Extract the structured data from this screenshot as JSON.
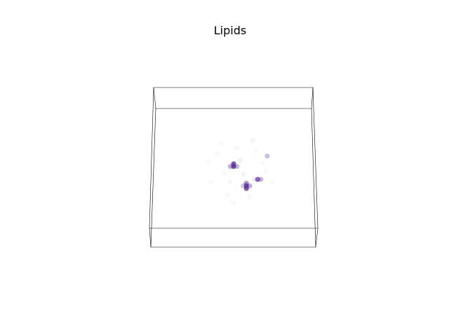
{
  "chart_data": {
    "type": "scatter",
    "projection": "3d",
    "title": "Lipids",
    "xlabel": "",
    "ylabel": "",
    "zlabel": "",
    "axis": "off",
    "grid": false,
    "legend": "none",
    "colormap": "purples",
    "color_high": "#54278f",
    "xlim": [
      0,
      1
    ],
    "ylim": [
      0,
      1
    ],
    "zlim": [
      0,
      1
    ],
    "series": [
      {
        "points": [
          {
            "x": 0.5,
            "y": 0.52,
            "z": 0.55,
            "v": 0.95
          },
          {
            "x": 0.5,
            "y": 0.54,
            "z": 0.55,
            "v": 0.9
          },
          {
            "x": 0.48,
            "y": 0.52,
            "z": 0.55,
            "v": 0.45
          },
          {
            "x": 0.52,
            "y": 0.52,
            "z": 0.55,
            "v": 0.4
          },
          {
            "x": 0.58,
            "y": 0.37,
            "z": 0.55,
            "v": 0.9
          },
          {
            "x": 0.58,
            "y": 0.35,
            "z": 0.55,
            "v": 0.85
          },
          {
            "x": 0.58,
            "y": 0.39,
            "z": 0.55,
            "v": 0.6
          },
          {
            "x": 0.6,
            "y": 0.37,
            "z": 0.55,
            "v": 0.45
          },
          {
            "x": 0.56,
            "y": 0.37,
            "z": 0.55,
            "v": 0.3
          },
          {
            "x": 0.65,
            "y": 0.42,
            "z": 0.55,
            "v": 0.8
          },
          {
            "x": 0.67,
            "y": 0.42,
            "z": 0.55,
            "v": 0.4
          },
          {
            "x": 0.71,
            "y": 0.6,
            "z": 0.55,
            "v": 0.35
          },
          {
            "x": 0.63,
            "y": 0.42,
            "z": 0.55,
            "v": 0.1
          },
          {
            "x": 0.54,
            "y": 0.57,
            "z": 0.55,
            "v": 0.08
          },
          {
            "x": 0.44,
            "y": 0.47,
            "z": 0.55,
            "v": 0.05
          },
          {
            "x": 0.4,
            "y": 0.62,
            "z": 0.55,
            "v": 0.04
          },
          {
            "x": 0.62,
            "y": 0.72,
            "z": 0.55,
            "v": 0.06
          },
          {
            "x": 0.68,
            "y": 0.55,
            "z": 0.55,
            "v": 0.05
          },
          {
            "x": 0.7,
            "y": 0.48,
            "z": 0.55,
            "v": 0.04
          },
          {
            "x": 0.46,
            "y": 0.3,
            "z": 0.55,
            "v": 0.04
          },
          {
            "x": 0.36,
            "y": 0.4,
            "z": 0.55,
            "v": 0.03
          },
          {
            "x": 0.6,
            "y": 0.28,
            "z": 0.55,
            "v": 0.04
          },
          {
            "x": 0.52,
            "y": 0.66,
            "z": 0.55,
            "v": 0.05
          },
          {
            "x": 0.42,
            "y": 0.7,
            "z": 0.55,
            "v": 0.03
          },
          {
            "x": 0.56,
            "y": 0.46,
            "z": 0.55,
            "v": 0.06
          },
          {
            "x": 0.48,
            "y": 0.4,
            "z": 0.55,
            "v": 0.05
          },
          {
            "x": 0.64,
            "y": 0.64,
            "z": 0.55,
            "v": 0.04
          },
          {
            "x": 0.34,
            "y": 0.56,
            "z": 0.55,
            "v": 0.03
          },
          {
            "x": 0.74,
            "y": 0.4,
            "z": 0.55,
            "v": 0.03
          },
          {
            "x": 0.5,
            "y": 0.24,
            "z": 0.55,
            "v": 0.03
          }
        ]
      }
    ]
  }
}
